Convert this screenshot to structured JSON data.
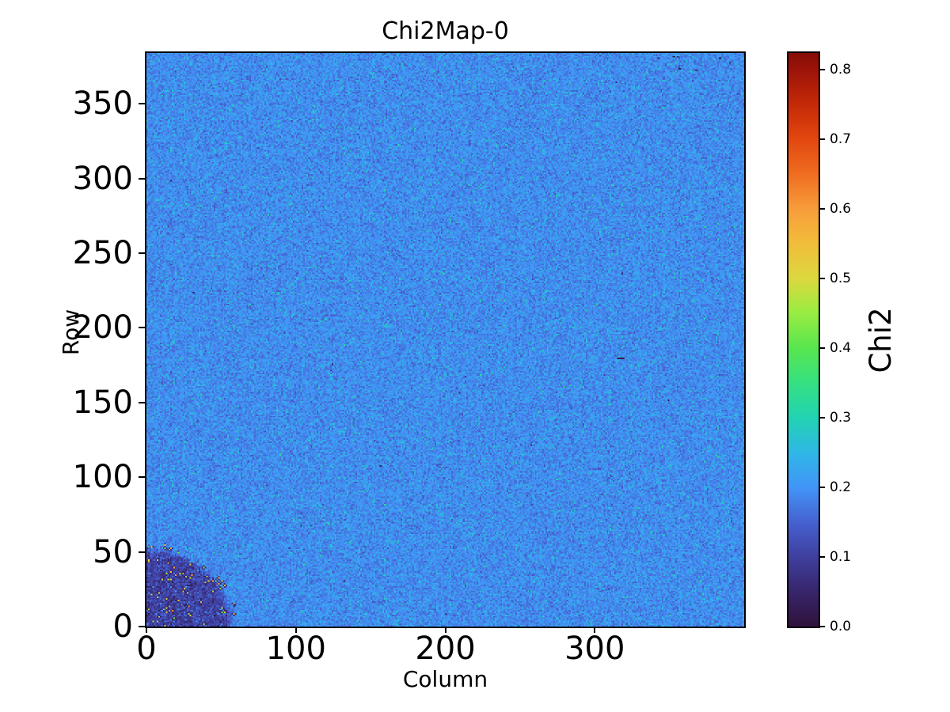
{
  "figure": {
    "title": "Chi2Map-0"
  },
  "chart_data": {
    "type": "heatmap",
    "title": "Chi2Map-0",
    "xlabel": "Column",
    "ylabel": "Row",
    "colorbar_label": "Chi2",
    "x_range": [
      0,
      400
    ],
    "y_range": [
      0,
      384
    ],
    "x_ticks": [
      0,
      100,
      200,
      300
    ],
    "y_ticks": [
      0,
      50,
      100,
      150,
      200,
      250,
      300,
      350
    ],
    "colorbar_tick_labels": [
      "0.0",
      "0.1",
      "0.2",
      "0.3",
      "0.4",
      "0.5",
      "0.6",
      "0.7",
      "0.8"
    ],
    "vmin": 0.0,
    "vmax": 0.824,
    "grid": false,
    "legend": "colorbar-right",
    "colormap": {
      "name": "turbo",
      "stops": [
        [
          0.0,
          "#30123b"
        ],
        [
          0.06,
          "#37256a"
        ],
        [
          0.121,
          "#3f3f9e"
        ],
        [
          0.18,
          "#4560cf"
        ],
        [
          0.243,
          "#4295f7"
        ],
        [
          0.3,
          "#30b5e8"
        ],
        [
          0.364,
          "#22d3b2"
        ],
        [
          0.425,
          "#35e081"
        ],
        [
          0.485,
          "#58e64f"
        ],
        [
          0.55,
          "#9cec41"
        ],
        [
          0.607,
          "#dcd83e"
        ],
        [
          0.67,
          "#f2bc3a"
        ],
        [
          0.728,
          "#f89d3b"
        ],
        [
          0.79,
          "#ef6c20"
        ],
        [
          0.85,
          "#e2470f"
        ],
        [
          0.91,
          "#c52a08"
        ],
        [
          0.971,
          "#9c1309"
        ],
        [
          1.0,
          "#860d06"
        ]
      ]
    },
    "field": {
      "cols": 400,
      "rows": 384,
      "base_value": 0.19,
      "noise_sigma": 0.022,
      "speckle_prob": 0.1,
      "speckle_max_boost": 0.06,
      "strong_speckle_prob": 0.02,
      "strong_speckle_boost_min": 0.05,
      "strong_speckle_boost_max": 0.1
    },
    "dark_corner": {
      "center_col": 0,
      "center_row": 0,
      "radius_cols": 56,
      "radius_rows": 51,
      "base_value": 0.1,
      "noise_sigma": 0.03,
      "bright_spots": {
        "count": 70,
        "value_min": 0.42,
        "value_max": 0.6
      }
    },
    "defects": {
      "dark_dash": {
        "row": 179,
        "col_start": 315,
        "col_end": 319,
        "value": 0.012
      },
      "top_right_dead_cluster": {
        "row_min": 371,
        "row_max": 381,
        "col_min": 340,
        "col_max": 390,
        "count": 7,
        "value": 0.02
      },
      "scattered_dead_pixels": {
        "count": 16,
        "value_min": 0.02,
        "value_max": 0.06
      }
    },
    "seed": 7
  }
}
